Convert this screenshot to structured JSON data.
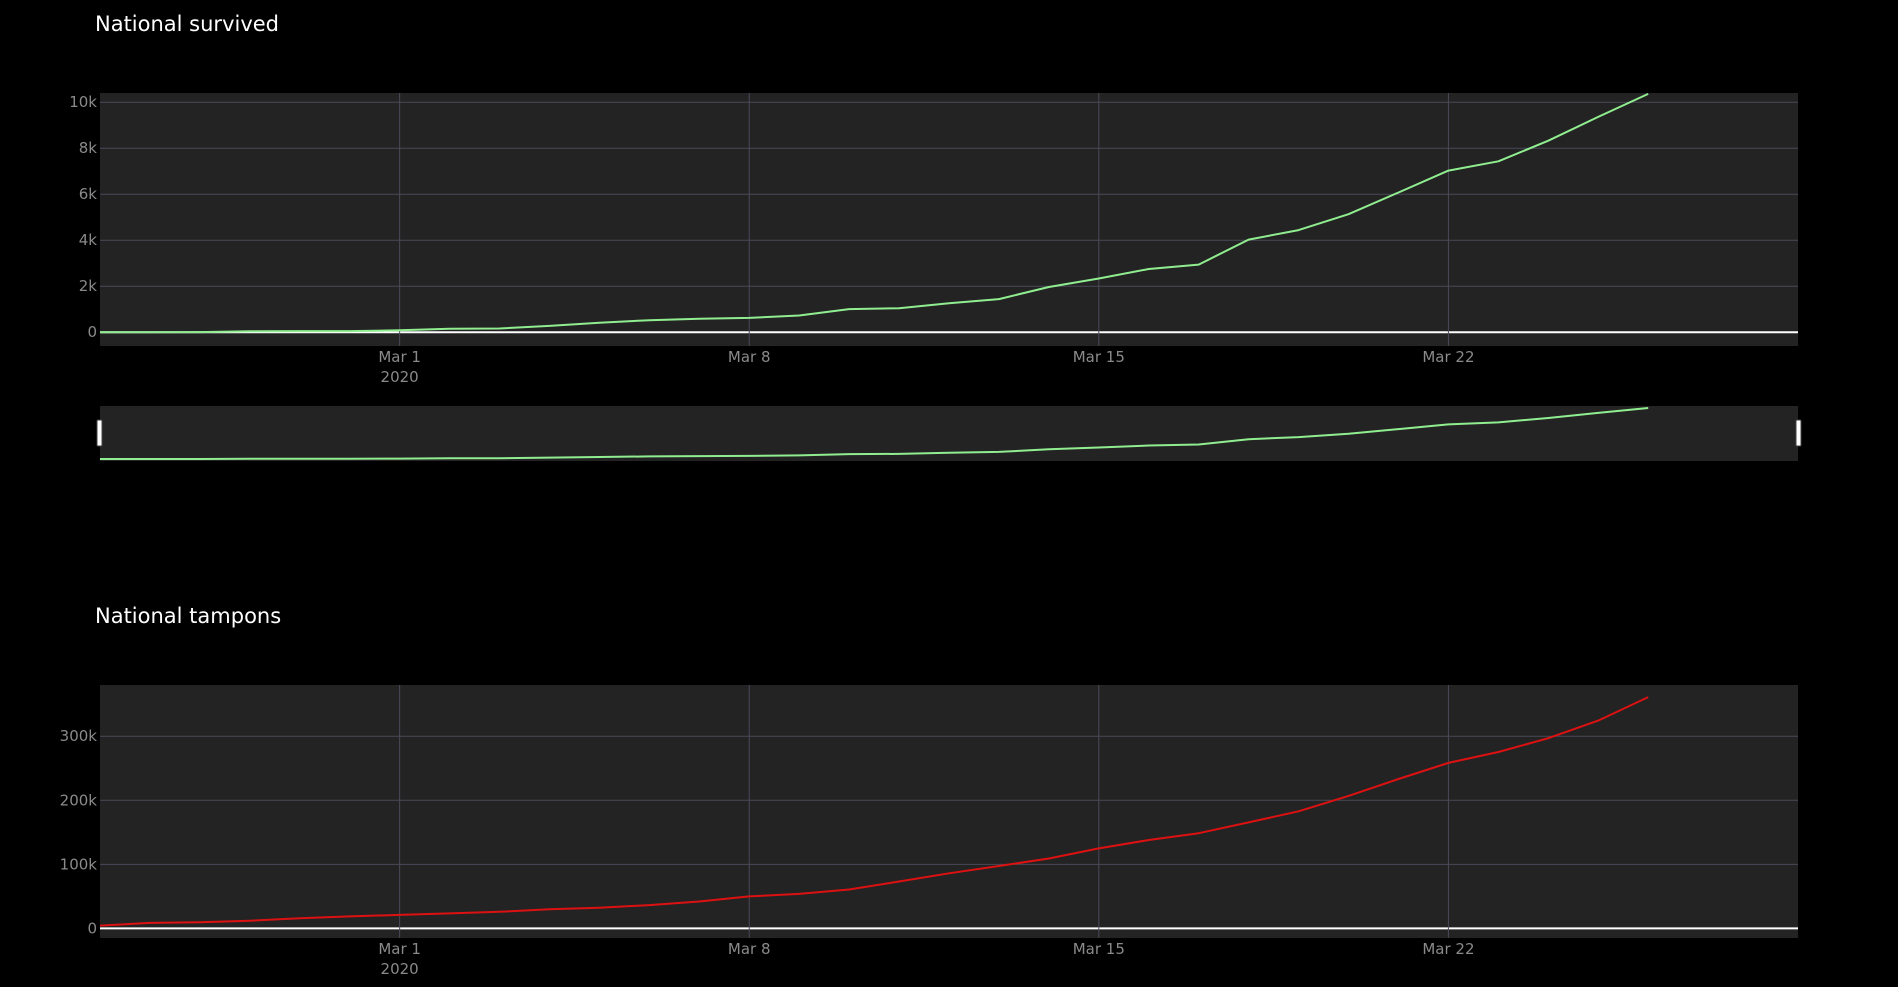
{
  "chart_data": [
    {
      "type": "line",
      "title": "National survived",
      "x_start": "2020-02-24",
      "x_step_days": 1,
      "xlim": [
        "2020-02-24",
        "2020-03-29"
      ],
      "x_ticks": [
        {
          "date": "2020-03-01",
          "label": "Mar 1",
          "sublabel": "2020"
        },
        {
          "date": "2020-03-08",
          "label": "Mar 8",
          "sublabel": ""
        },
        {
          "date": "2020-03-15",
          "label": "Mar 15",
          "sublabel": ""
        },
        {
          "date": "2020-03-22",
          "label": "Mar 22",
          "sublabel": ""
        }
      ],
      "ylim": [
        -600,
        10400
      ],
      "y_ticks": [
        {
          "value": 0,
          "label": "0"
        },
        {
          "value": 2000,
          "label": "2k"
        },
        {
          "value": 4000,
          "label": "4k"
        },
        {
          "value": 6000,
          "label": "6k"
        },
        {
          "value": 8000,
          "label": "8k"
        },
        {
          "value": 10000,
          "label": "10k"
        }
      ],
      "grid": true,
      "rangeslider": true,
      "series": [
        {
          "name": "",
          "color": "#90ee90",
          "values": [
            1,
            1,
            3,
            45,
            46,
            50,
            83,
            149,
            160,
            276,
            414,
            523,
            589,
            622,
            724,
            1004,
            1045,
            1258,
            1439,
            1966,
            2335,
            2749,
            2941,
            4025,
            4440,
            5129,
            6072,
            7024,
            7432,
            8326,
            9362,
            10361
          ]
        }
      ]
    },
    {
      "type": "line",
      "title": "National tampons",
      "x_start": "2020-02-24",
      "x_step_days": 1,
      "xlim": [
        "2020-02-24",
        "2020-03-29"
      ],
      "x_ticks": [
        {
          "date": "2020-03-01",
          "label": "Mar 1",
          "sublabel": "2020"
        },
        {
          "date": "2020-03-08",
          "label": "Mar 8",
          "sublabel": ""
        },
        {
          "date": "2020-03-15",
          "label": "Mar 15",
          "sublabel": ""
        },
        {
          "date": "2020-03-22",
          "label": "Mar 22",
          "sublabel": ""
        }
      ],
      "ylim": [
        -15000,
        380000
      ],
      "y_ticks": [
        {
          "value": 0,
          "label": "0"
        },
        {
          "value": 100000,
          "label": "100k"
        },
        {
          "value": 200000,
          "label": "200k"
        },
        {
          "value": 300000,
          "label": "300k"
        }
      ],
      "grid": true,
      "rangeslider": false,
      "series": [
        {
          "name": "",
          "color": "#dd1111",
          "values": [
            4324,
            8623,
            9587,
            12014,
            15695,
            18661,
            21127,
            23345,
            25856,
            29837,
            32362,
            36359,
            42062,
            49937,
            53826,
            60761,
            73154,
            86011,
            97488,
            109170,
            124899,
            137962,
            148657,
            165541,
            182777,
            206886,
            233222,
            258402,
            275468,
            296964,
            324445,
            361060
          ]
        }
      ]
    }
  ]
}
